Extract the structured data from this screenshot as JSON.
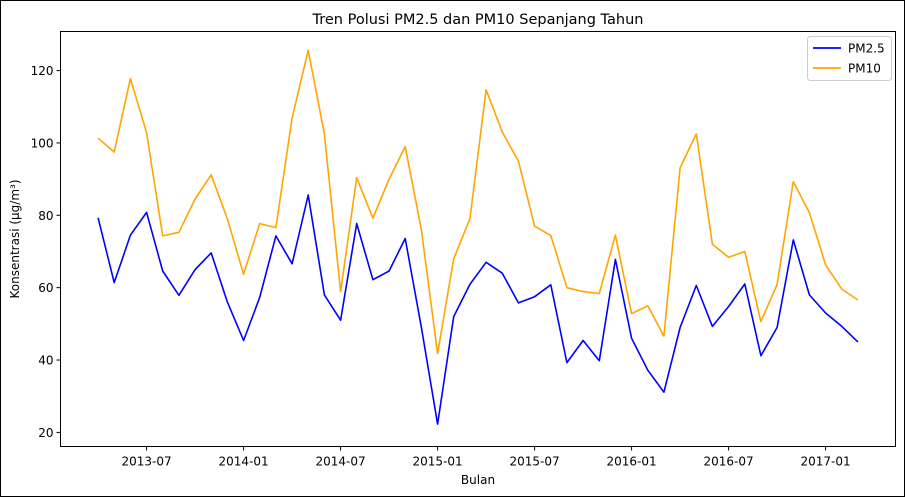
{
  "chart_data": {
    "type": "line",
    "title": "Tren Polusi PM2.5 dan PM10 Sepanjang Tahun",
    "xlabel": "Bulan",
    "ylabel": "Konsentrasi (µg/m³)",
    "x": [
      "2013-04",
      "2013-05",
      "2013-06",
      "2013-07",
      "2013-08",
      "2013-09",
      "2013-10",
      "2013-11",
      "2013-12",
      "2014-01",
      "2014-02",
      "2014-03",
      "2014-04",
      "2014-05",
      "2014-06",
      "2014-07",
      "2014-08",
      "2014-09",
      "2014-10",
      "2014-11",
      "2014-12",
      "2015-01",
      "2015-02",
      "2015-03",
      "2015-04",
      "2015-05",
      "2015-06",
      "2015-07",
      "2015-08",
      "2015-09",
      "2015-10",
      "2015-11",
      "2015-12",
      "2016-01",
      "2016-02",
      "2016-03",
      "2016-04",
      "2016-05",
      "2016-06",
      "2016-07",
      "2016-08",
      "2016-09",
      "2016-10",
      "2016-11",
      "2016-12",
      "2017-01",
      "2017-02",
      "2017-03"
    ],
    "series": [
      {
        "name": "PM2.5",
        "color": "#0000ff",
        "values": [
          79.3,
          61.4,
          74.5,
          80.8,
          64.6,
          57.9,
          65.0,
          69.6,
          56.0,
          45.4,
          57.3,
          74.3,
          66.6,
          85.6,
          58.0,
          51.0,
          77.7,
          62.2,
          64.6,
          73.6,
          49.0,
          22.3,
          52.0,
          60.9,
          67.0,
          64.0,
          55.8,
          57.5,
          60.8,
          39.3,
          45.4,
          39.8,
          67.8,
          46.0,
          37.2,
          31.1,
          49.0,
          60.6,
          49.3,
          54.8,
          61.0,
          41.2,
          49.0,
          73.2,
          58.0,
          53.0,
          49.3,
          45.0
        ]
      },
      {
        "name": "PM10",
        "color": "#ffa500",
        "values": [
          101.3,
          97.5,
          117.8,
          102.8,
          74.3,
          75.3,
          84.5,
          91.2,
          79.0,
          63.7,
          77.7,
          76.6,
          106.9,
          125.6,
          102.5,
          58.9,
          90.4,
          79.2,
          90.0,
          99.0,
          76.0,
          41.8,
          68.0,
          79.0,
          114.7,
          103.0,
          95.0,
          77.0,
          74.4,
          60.0,
          58.9,
          58.4,
          74.5,
          52.8,
          55.0,
          46.6,
          93.1,
          102.5,
          72.0,
          68.4,
          70.0,
          50.6,
          60.9,
          89.3,
          80.7,
          66.3,
          59.6,
          56.6
        ]
      }
    ],
    "x_ticks": [
      "2013-07",
      "2014-01",
      "2014-07",
      "2015-01",
      "2015-07",
      "2016-01",
      "2016-07",
      "2017-01"
    ],
    "y_ticks": [
      20,
      40,
      60,
      80,
      100,
      120
    ],
    "ylim": [
      16.1,
      130.8
    ],
    "legend_position": "top-right",
    "grid": false
  }
}
